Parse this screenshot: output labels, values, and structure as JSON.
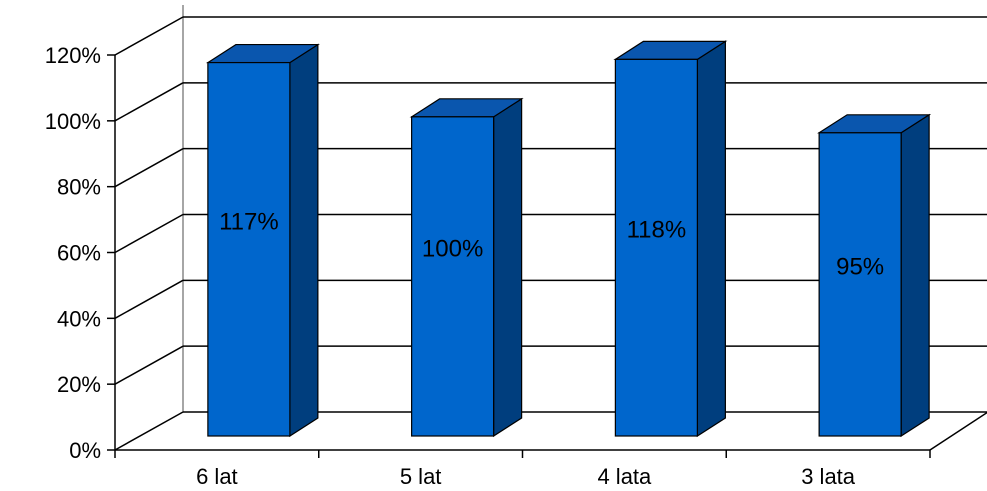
{
  "chart_data": {
    "type": "bar",
    "categories": [
      "6 lat",
      "5 lat",
      "4 lata",
      "3 lata"
    ],
    "values": [
      117,
      100,
      118,
      95
    ],
    "data_labels": [
      "117%",
      "100%",
      "118%",
      "95%"
    ],
    "y_ticks": [
      "0%",
      "20%",
      "40%",
      "60%",
      "80%",
      "100%",
      "120%"
    ],
    "ylim": [
      0,
      120
    ],
    "grid": true,
    "bar_style": "3d",
    "colors": {
      "bar_front": "#0066CC",
      "bar_top": "#0A56AE",
      "bar_side": "#003E7E",
      "grid": "#000000",
      "back_wall_left_edge": "#A6A6A6"
    }
  }
}
